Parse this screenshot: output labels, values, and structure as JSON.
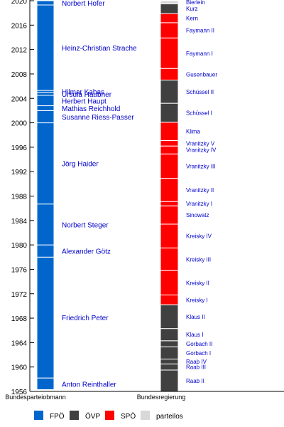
{
  "chart_data": {
    "type": "timeline",
    "xlabel": "",
    "ylabel": "",
    "ylim": [
      1956,
      2020
    ],
    "yticks": [
      1956,
      1960,
      1964,
      1968,
      1972,
      1976,
      1980,
      1984,
      1988,
      1992,
      1996,
      2000,
      2004,
      2008,
      2012,
      2016,
      2020
    ],
    "columns": [
      {
        "label": "Bundesparteiobmann"
      },
      {
        "label": "Bundesregierung"
      }
    ],
    "colors": {
      "FPÖ": "#0066cc",
      "ÖVP": "#404040",
      "SPÖ": "#ff0000",
      "parteilos": "#d8d8d8"
    },
    "legend": [
      {
        "name": "FPÖ",
        "color": "#0066cc"
      },
      {
        "name": "ÖVP",
        "color": "#404040"
      },
      {
        "name": "SPÖ",
        "color": "#ff0000"
      },
      {
        "name": "parteilos",
        "color": "#d8d8d8"
      }
    ],
    "leaders": [
      {
        "name": "Anton Reinthaller",
        "start": 1956.3,
        "end": 1958.2
      },
      {
        "name": "Friedrich Peter",
        "start": 1958.2,
        "end": 1978.0
      },
      {
        "name": "Alexander Götz",
        "start": 1978.0,
        "end": 1980.0
      },
      {
        "name": "Norbert Steger",
        "start": 1980.0,
        "end": 1986.7
      },
      {
        "name": "Jörg Haider",
        "start": 1986.7,
        "end": 2000.0
      },
      {
        "name": "Susanne Riess-Passer",
        "start": 2000.0,
        "end": 2002.0
      },
      {
        "name": "Mathias Reichhold",
        "start": 2002.0,
        "end": 2002.8
      },
      {
        "name": "Herbert Haupt",
        "start": 2002.8,
        "end": 2004.5
      },
      {
        "name": "Ursula Haubner",
        "start": 2004.5,
        "end": 2005.0
      },
      {
        "name": "Hilmar Kabas",
        "start": 2005.0,
        "end": 2005.3
      },
      {
        "name": "Heinz-Christian Strache",
        "start": 2005.3,
        "end": 2019.3
      },
      {
        "name": "Norbert Hofer",
        "start": 2019.3,
        "end": 2020.0
      }
    ],
    "governments": [
      {
        "name": "Raab II",
        "start": 1956.0,
        "end": 1959.5,
        "party": "ÖVP"
      },
      {
        "name": "Raab III",
        "start": 1959.5,
        "end": 1960.5,
        "party": "ÖVP"
      },
      {
        "name": "Raab IV",
        "start": 1960.5,
        "end": 1961.3,
        "party": "ÖVP"
      },
      {
        "name": "Gorbach I",
        "start": 1961.3,
        "end": 1963.3,
        "party": "ÖVP"
      },
      {
        "name": "Gorbach II",
        "start": 1963.3,
        "end": 1964.3,
        "party": "ÖVP"
      },
      {
        "name": "Klaus I",
        "start": 1964.3,
        "end": 1966.3,
        "party": "ÖVP"
      },
      {
        "name": "Klaus II",
        "start": 1966.3,
        "end": 1970.2,
        "party": "ÖVP"
      },
      {
        "name": "Kreisky I",
        "start": 1970.2,
        "end": 1971.8,
        "party": "SPÖ"
      },
      {
        "name": "Kreisky II",
        "start": 1971.8,
        "end": 1975.8,
        "party": "SPÖ"
      },
      {
        "name": "Kreisky III",
        "start": 1975.8,
        "end": 1979.5,
        "party": "SPÖ"
      },
      {
        "name": "Kreisky IV",
        "start": 1979.5,
        "end": 1983.4,
        "party": "SPÖ"
      },
      {
        "name": "Sinowatz",
        "start": 1983.4,
        "end": 1986.4,
        "party": "SPÖ"
      },
      {
        "name": "Vranitzky I",
        "start": 1986.4,
        "end": 1987.1,
        "party": "SPÖ"
      },
      {
        "name": "Vranitzky II",
        "start": 1987.1,
        "end": 1990.9,
        "party": "SPÖ"
      },
      {
        "name": "Vranitzky III",
        "start": 1990.9,
        "end": 1994.9,
        "party": "SPÖ"
      },
      {
        "name": "Vranitzky IV",
        "start": 1994.9,
        "end": 1996.2,
        "party": "SPÖ"
      },
      {
        "name": "Vranitzky V",
        "start": 1996.2,
        "end": 1997.1,
        "party": "SPÖ"
      },
      {
        "name": "Klima",
        "start": 1997.1,
        "end": 2000.1,
        "party": "SPÖ"
      },
      {
        "name": "Schüssel I",
        "start": 2000.1,
        "end": 2003.2,
        "party": "ÖVP"
      },
      {
        "name": "Schüssel II",
        "start": 2003.2,
        "end": 2007.0,
        "party": "ÖVP"
      },
      {
        "name": "Gusenbauer",
        "start": 2007.0,
        "end": 2008.9,
        "party": "SPÖ"
      },
      {
        "name": "Faymann I",
        "start": 2008.9,
        "end": 2013.9,
        "party": "SPÖ"
      },
      {
        "name": "Faymann II",
        "start": 2013.9,
        "end": 2016.4,
        "party": "SPÖ"
      },
      {
        "name": "Kern",
        "start": 2016.4,
        "end": 2017.9,
        "party": "SPÖ"
      },
      {
        "name": "Kurz",
        "start": 2017.9,
        "end": 2019.5,
        "party": "ÖVP"
      },
      {
        "name": "Bierlein",
        "start": 2019.5,
        "end": 2020.0,
        "party": "parteilos"
      }
    ]
  }
}
